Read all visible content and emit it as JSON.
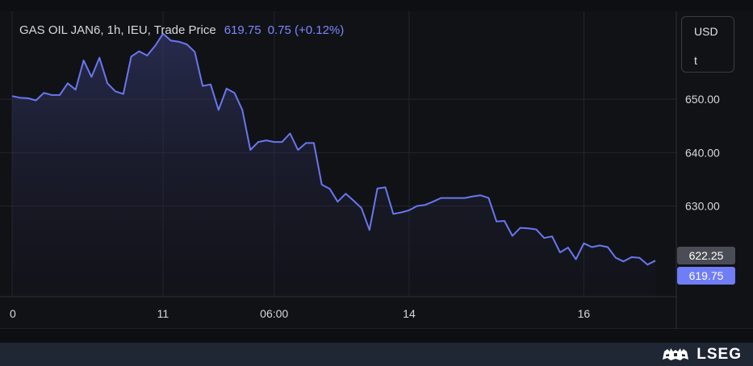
{
  "header": {
    "instrument": "GAS OIL JAN6, 1h, IEU, Trade Price",
    "last_price": "619.75",
    "change": "0.75 (+0.12%)"
  },
  "unit_selector": {
    "currency": "USD",
    "unit": "t"
  },
  "badges": {
    "reference_price": "622.25",
    "last_price": "619.75",
    "reference_color": "#4a4d55",
    "last_color": "#6f7df6"
  },
  "branding": {
    "logo_text": "LSEG"
  },
  "colors": {
    "line": "#6a76f0",
    "accent_text": "#7c87ff"
  },
  "chart_data": {
    "type": "area",
    "title": "GAS OIL JAN6, 1h, IEU, Trade Price",
    "ylim": [
      613,
      666.5
    ],
    "y_ticks": [
      630,
      640,
      650
    ],
    "y_tick_labels": [
      "630.00",
      "640.00",
      "650.00"
    ],
    "x_ticks": [
      {
        "label": "0",
        "index": 0
      },
      {
        "label": "11",
        "index": 19
      },
      {
        "label": "06:00",
        "index": 33
      },
      {
        "label": "14",
        "index": 50
      },
      {
        "label": "16",
        "index": 72
      }
    ],
    "grid": true,
    "series": [
      {
        "values": [
          650.6,
          650.3,
          650.2,
          649.8,
          651.2,
          650.8,
          650.8,
          653.0,
          651.8,
          657.3,
          654.2,
          657.8,
          653.0,
          651.5,
          651.0,
          658.0,
          659.0,
          658.2,
          660.0,
          662.3,
          661.0,
          660.8,
          660.3,
          658.9,
          652.5,
          652.8,
          648.0,
          652.0,
          651.2,
          648.0,
          640.5,
          642.0,
          642.3,
          642.0,
          642.0,
          643.6,
          640.5,
          641.8,
          641.8,
          634.0,
          633.2,
          630.8,
          632.3,
          631.0,
          629.6,
          625.5,
          633.3,
          633.5,
          628.5,
          628.8,
          629.2,
          630.0,
          630.2,
          630.8,
          631.5,
          631.5,
          631.5,
          631.5,
          631.8,
          632.0,
          631.5,
          627.1,
          627.2,
          624.4,
          625.9,
          625.8,
          625.6,
          624.0,
          624.3,
          621.3,
          622.2,
          620.0,
          623.0,
          622.3,
          622.6,
          622.3,
          620.3,
          619.6,
          620.4,
          620.3,
          619.0,
          619.75
        ]
      }
    ]
  }
}
